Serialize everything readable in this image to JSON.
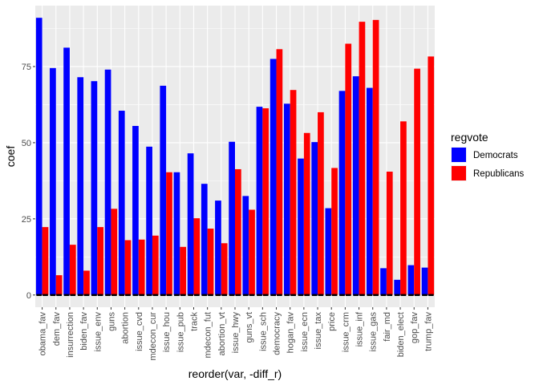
{
  "chart_data": {
    "type": "bar",
    "xlabel": "reorder(var, -diff_r)",
    "ylabel": "coef",
    "ylim": [
      -4,
      95
    ],
    "yticks": [
      0,
      25,
      50,
      75
    ],
    "grid": true,
    "legend": {
      "title": "regvote",
      "placement": "right"
    },
    "categories": [
      "obama_fav",
      "dem_fav",
      "insurrection",
      "biden_fav",
      "issue_env",
      "guns",
      "abortion",
      "issue_cvd",
      "mdecon_cur",
      "issue_hou",
      "issue_pub",
      "track",
      "mdecon_fut",
      "abortion_vt",
      "issue_hwy",
      "guns_vt",
      "issue_sch",
      "democracy",
      "hogan_fav",
      "issue_ecn",
      "issue_tax",
      "price",
      "issue_crm",
      "issue_inf",
      "issue_gas",
      "fair_md",
      "biden_elect",
      "gop_fav",
      "trump_fav"
    ],
    "series": [
      {
        "name": "Democrats",
        "color": "#0000ff",
        "values": [
          91.0,
          74.5,
          81.2,
          71.5,
          70.2,
          74.0,
          60.5,
          55.5,
          48.7,
          68.7,
          40.3,
          46.5,
          36.5,
          31.0,
          50.3,
          32.5,
          61.8,
          77.5,
          62.8,
          44.8,
          50.2,
          28.5,
          67.0,
          71.8,
          68.0,
          8.8,
          5.0,
          9.8,
          9.0
        ]
      },
      {
        "name": "Republicans",
        "color": "#ff0000",
        "values": [
          22.3,
          6.5,
          16.5,
          8.0,
          22.3,
          28.3,
          18.0,
          18.2,
          19.5,
          40.3,
          15.8,
          25.2,
          21.8,
          17.0,
          41.3,
          28.0,
          61.3,
          80.7,
          67.3,
          53.2,
          60.0,
          41.7,
          82.5,
          89.7,
          90.3,
          40.5,
          57.0,
          74.3,
          78.3
        ]
      }
    ]
  }
}
